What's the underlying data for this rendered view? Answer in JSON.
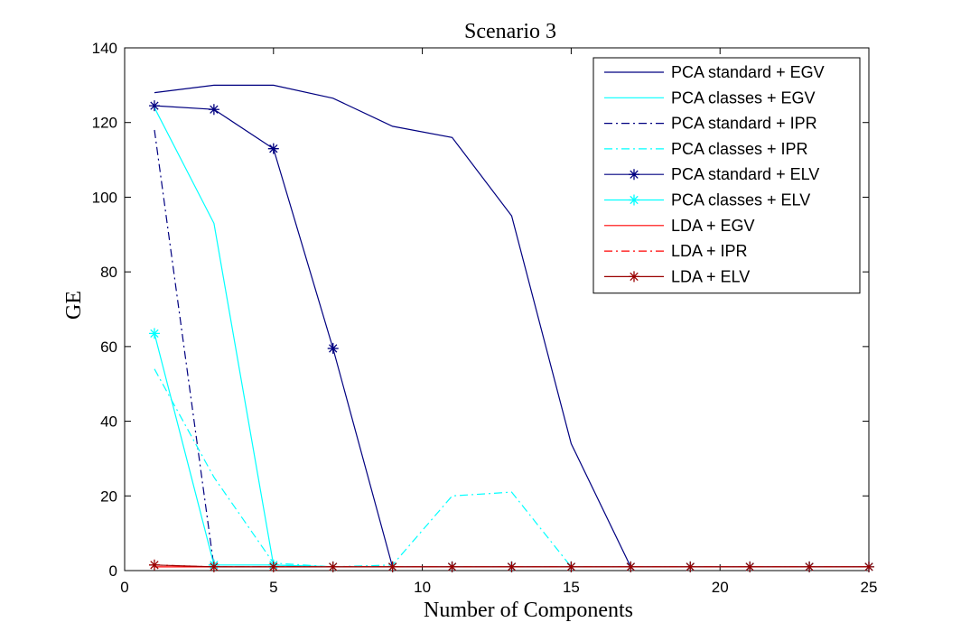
{
  "chart_data": {
    "type": "line",
    "title": "Scenario 3",
    "xlabel": "Number of Components",
    "ylabel": "GE",
    "xlim": [
      0,
      25
    ],
    "ylim": [
      0,
      140
    ],
    "xticks": [
      0,
      5,
      10,
      15,
      20,
      25
    ],
    "yticks": [
      0,
      20,
      40,
      60,
      80,
      100,
      120,
      140
    ],
    "grid": false,
    "legend_position": "top-right",
    "x": [
      1,
      3,
      5,
      7,
      9,
      11,
      13,
      15,
      17,
      19,
      21,
      23,
      25
    ],
    "series": [
      {
        "name": "PCA standard + EGV",
        "color": "#000080",
        "line": "solid",
        "marker": "none",
        "values": [
          128,
          130,
          130,
          126.5,
          119,
          116,
          95,
          34,
          1,
          1,
          1,
          1,
          1
        ]
      },
      {
        "name": "PCA classes + EGV",
        "color": "#00FFFF",
        "line": "solid",
        "marker": "none",
        "values": [
          124,
          93,
          1.5,
          1,
          1,
          1,
          1,
          1,
          1,
          1,
          1,
          1,
          1
        ]
      },
      {
        "name": "PCA standard + IPR",
        "color": "#000080",
        "line": "dashdot",
        "marker": "none",
        "values": [
          118,
          1,
          1,
          1,
          1,
          1,
          1,
          1,
          1,
          1,
          1,
          1,
          1
        ]
      },
      {
        "name": "PCA classes + IPR",
        "color": "#00FFFF",
        "line": "dashdot",
        "marker": "none",
        "values": [
          54,
          25,
          2,
          1,
          1.5,
          20,
          21,
          1,
          1,
          1,
          1,
          1,
          1
        ]
      },
      {
        "name": "PCA standard + ELV",
        "color": "#000080",
        "line": "solid",
        "marker": "star",
        "values": [
          124.5,
          123.5,
          113,
          59.5,
          1,
          1,
          1,
          1,
          1,
          1,
          1,
          1,
          1
        ]
      },
      {
        "name": "PCA classes + ELV",
        "color": "#00FFFF",
        "line": "solid",
        "marker": "star",
        "values": [
          63.5,
          1.5,
          1.5,
          1,
          1,
          1,
          1,
          1,
          1,
          1,
          1,
          1,
          1
        ]
      },
      {
        "name": "LDA + EGV",
        "color": "#FF0000",
        "line": "solid",
        "marker": "none",
        "values": [
          1,
          1,
          1,
          1,
          1,
          1,
          1,
          1,
          1,
          1,
          1,
          1,
          1
        ]
      },
      {
        "name": "LDA + IPR",
        "color": "#FF0000",
        "line": "dashdot",
        "marker": "none",
        "values": [
          1.5,
          1,
          1,
          1,
          1,
          1,
          1,
          1,
          1,
          1,
          1,
          1,
          1
        ]
      },
      {
        "name": "LDA + ELV",
        "color": "#990000",
        "line": "solid",
        "marker": "star",
        "values": [
          1.5,
          1,
          1,
          1,
          1,
          1,
          1,
          1,
          1,
          1,
          1,
          1,
          1
        ]
      }
    ]
  }
}
